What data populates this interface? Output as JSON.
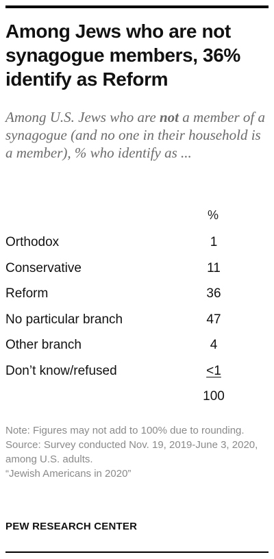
{
  "title": "Among Jews who are not synagogue members, 36% identify as Reform",
  "subtitle": {
    "before": "Among U.S. Jews who are ",
    "emphasis": "not",
    "after": " a member of a synagogue (and no one in their household is a member), % who identify as ..."
  },
  "chart_data": {
    "type": "table",
    "unit_header": "%",
    "rows": [
      {
        "label": "Orthodox",
        "value": "1"
      },
      {
        "label": "Conservative",
        "value": "11"
      },
      {
        "label": "Reform",
        "value": "36"
      },
      {
        "label": "No particular branch",
        "value": "47"
      },
      {
        "label": "Other branch",
        "value": "4"
      },
      {
        "label": "Don’t know/refused",
        "value": "<1"
      }
    ],
    "total": "100"
  },
  "note": "Note: Figures may not add to 100% due to rounding.",
  "source": "Source: Survey conducted Nov. 19, 2019-June 3, 2020, among U.S. adults.",
  "report": "“Jewish Americans in 2020”",
  "brand": "PEW RESEARCH CENTER"
}
